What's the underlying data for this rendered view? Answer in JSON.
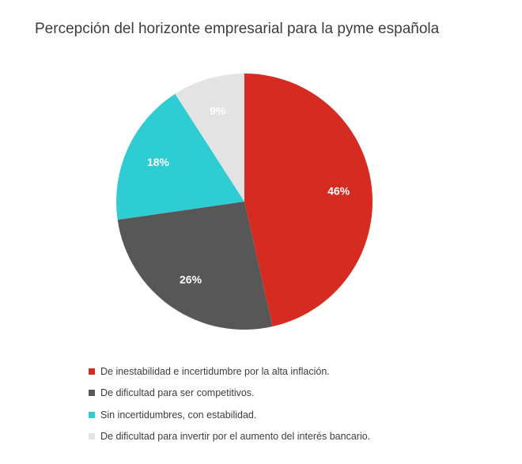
{
  "chart_data": {
    "type": "pie",
    "title": "Percepción del horizonte empresarial para la pyme española",
    "slices": [
      {
        "label": "De inestabilidad e incertidumbre por la alta inflación.",
        "value": 46,
        "value_label": "46%",
        "color": "#d62b20"
      },
      {
        "label": "De dificultad para ser competitivos.",
        "value": 26,
        "value_label": "26%",
        "color": "#575757"
      },
      {
        "label": "Sin incertidumbres, con estabilidad.",
        "value": 18,
        "value_label": "18%",
        "color": "#2ecdd3"
      },
      {
        "label": "De dificultad para invertir por el aumento del interés bancario.",
        "value": 9,
        "value_label": "9%",
        "color": "#e3e3e3"
      }
    ],
    "legend_position": "bottom"
  }
}
